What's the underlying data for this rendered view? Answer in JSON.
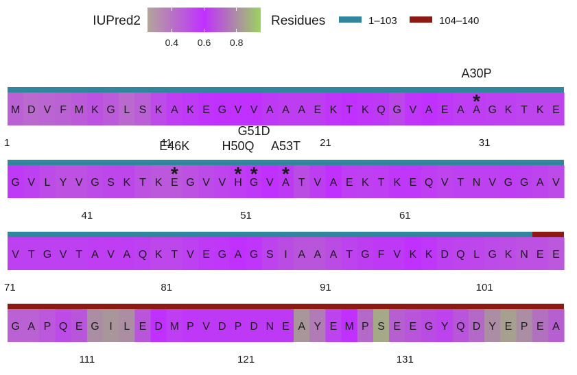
{
  "chart_data": {
    "type": "heatmap",
    "legend": {
      "colorbar": {
        "title": "IUPred2",
        "ticks": [
          "0.4",
          "0.6",
          "0.8"
        ],
        "tick_values": [
          0.4,
          0.6,
          0.8
        ],
        "range": [
          0.25,
          0.95
        ],
        "colors": [
          "#b3a59a",
          "#c030ff",
          "#9cd35f"
        ]
      },
      "residues": {
        "title": "Residues",
        "items": [
          {
            "label": "1–103",
            "color": "#31859c"
          },
          {
            "label": "104–140",
            "color": "#8b1a12"
          }
        ]
      }
    },
    "sequence": "MDVFMKGLSKAKEGVVAAAEKTKQGVAEAAGKTKEGVLYVGSKTKEGVVHGVATVAEKTKEQVTNVGGAVVTGVTAVAQKTVEGAGSIAAATGFVKKDQLGKNEEGAPQEGILEDMPVDPDNEAYEMPSEEGYQDYEPEA",
    "row_length": 35,
    "tick_labels": [
      "1",
      "11",
      "21",
      "31",
      "41",
      "51",
      "61",
      "71",
      "81",
      "91",
      "101",
      "111",
      "121",
      "131"
    ],
    "tick_positions": [
      1,
      11,
      21,
      31,
      41,
      51,
      61,
      71,
      81,
      91,
      101,
      111,
      121,
      131
    ],
    "iupred_scores": [
      0.45,
      0.43,
      0.44,
      0.45,
      0.47,
      0.5,
      0.47,
      0.43,
      0.46,
      0.52,
      0.56,
      0.57,
      0.59,
      0.6,
      0.6,
      0.6,
      0.62,
      0.63,
      0.63,
      0.63,
      0.61,
      0.6,
      0.61,
      0.62,
      0.65,
      0.61,
      0.6,
      0.58,
      0.56,
      0.56,
      0.55,
      0.55,
      0.54,
      0.54,
      0.54,
      0.57,
      0.55,
      0.52,
      0.5,
      0.5,
      0.52,
      0.53,
      0.53,
      0.5,
      0.48,
      0.48,
      0.5,
      0.52,
      0.54,
      0.56,
      0.58,
      0.6,
      0.62,
      0.66,
      0.63,
      0.6,
      0.56,
      0.55,
      0.56,
      0.58,
      0.58,
      0.56,
      0.54,
      0.55,
      0.55,
      0.55,
      0.56,
      0.55,
      0.54,
      0.52,
      0.55,
      0.55,
      0.55,
      0.55,
      0.55,
      0.56,
      0.56,
      0.56,
      0.55,
      0.53,
      0.53,
      0.55,
      0.57,
      0.58,
      0.6,
      0.61,
      0.64,
      0.66,
      0.68,
      0.68,
      0.66,
      0.64,
      0.63,
      0.62,
      0.62,
      0.6,
      0.58,
      0.55,
      0.54,
      0.53,
      0.52,
      0.51,
      0.5,
      0.5,
      0.48,
      0.45,
      0.45,
      0.48,
      0.52,
      0.68,
      0.8,
      0.82,
      0.8,
      0.68,
      0.6,
      0.56,
      0.58,
      0.62,
      0.62,
      0.62,
      0.62,
      0.62,
      0.62,
      0.82,
      0.76,
      0.64,
      0.6,
      0.72,
      0.86,
      0.7,
      0.68,
      0.66,
      0.64,
      0.68,
      0.72,
      0.8,
      0.84,
      0.8,
      0.74,
      0.7
    ],
    "domains": [
      {
        "label": "1–103",
        "start": 1,
        "end": 103,
        "color": "#31859c"
      },
      {
        "label": "104–140",
        "start": 104,
        "end": 140,
        "color": "#8b1a12"
      }
    ],
    "mutations": [
      {
        "label": "A30P",
        "position": 30
      },
      {
        "label": "E46K",
        "position": 46
      },
      {
        "label": "H50Q",
        "position": 50
      },
      {
        "label": "G51D",
        "position": 51
      },
      {
        "label": "A53T",
        "position": 53
      }
    ],
    "marker_symbol": "*"
  }
}
